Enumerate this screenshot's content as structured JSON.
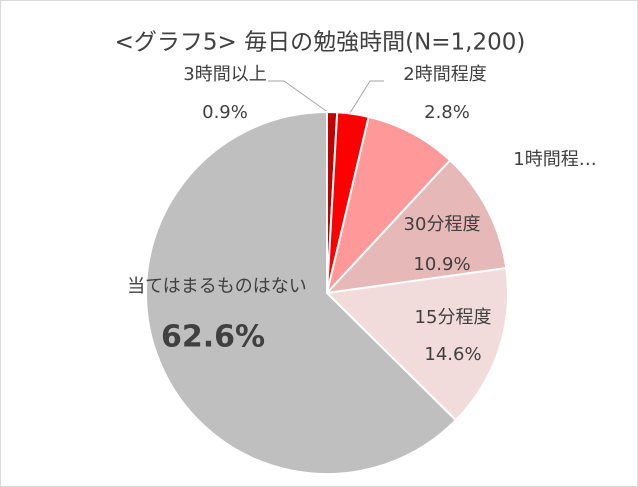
{
  "chart_data": {
    "type": "pie",
    "title": "<グラフ5> 毎日の勉強時間(N=1,200)",
    "categories": [
      "3時間以上",
      "2時間程度",
      "1時間程…",
      "30分程度",
      "15分程度",
      "当てはまるものはない"
    ],
    "values": [
      0.9,
      2.8,
      8.2,
      10.9,
      14.6,
      62.6
    ],
    "value_labels": [
      "0.9%",
      "2.8%",
      null,
      "10.9%",
      "14.6%",
      "62.6%"
    ],
    "colors": [
      "#c00000",
      "#ff0000",
      "#ff9999",
      "#e6b9b8",
      "#f2dcdb",
      "#bfbfbf"
    ]
  }
}
